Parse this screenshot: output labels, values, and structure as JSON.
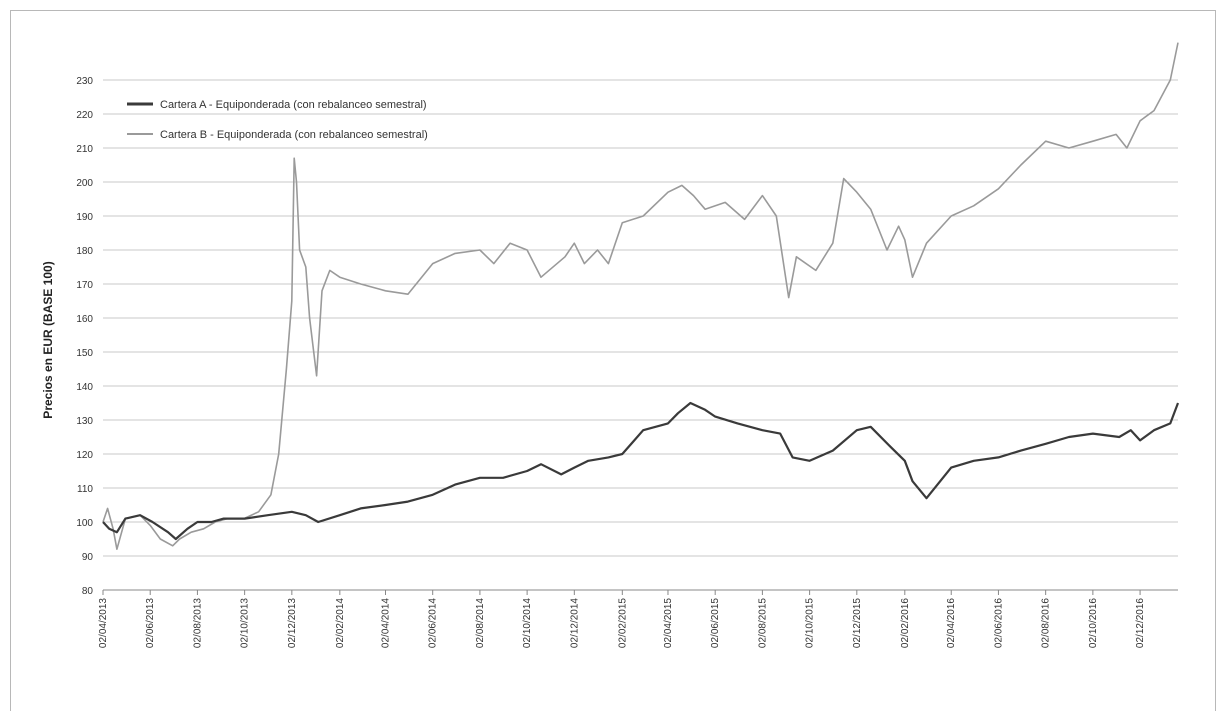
{
  "chart_data": {
    "type": "line",
    "title": "",
    "xlabel": "",
    "ylabel": "Precios en EUR (BASE 100)",
    "ylim": [
      80,
      230
    ],
    "yticks": [
      80,
      90,
      100,
      110,
      120,
      130,
      140,
      150,
      160,
      170,
      180,
      190,
      200,
      210,
      220,
      230
    ],
    "x_tick_labels": [
      "02/04/2013",
      "02/06/2013",
      "02/08/2013",
      "02/10/2013",
      "02/12/2013",
      "02/02/2014",
      "02/04/2014",
      "02/06/2014",
      "02/08/2014",
      "02/10/2014",
      "02/12/2014",
      "02/02/2015",
      "02/04/2015",
      "02/06/2015",
      "02/08/2015",
      "02/10/2015",
      "02/12/2015",
      "02/02/2016",
      "02/04/2016",
      "02/06/2016",
      "02/08/2016",
      "02/10/2016",
      "02/12/2016"
    ],
    "x_range": [
      "2013-04-02",
      "2017-01-20"
    ],
    "grid": "horizontal",
    "legend_position": "top-left",
    "series": [
      {
        "name": "Cartera A - Equiponderada (con rebalanceo semestral)",
        "color": "#3a3a3a",
        "x": [
          "2013-04-02",
          "2013-04-10",
          "2013-04-20",
          "2013-05-01",
          "2013-05-20",
          "2013-06-05",
          "2013-06-25",
          "2013-07-05",
          "2013-07-20",
          "2013-08-02",
          "2013-08-20",
          "2013-09-05",
          "2013-09-20",
          "2013-10-02",
          "2013-11-01",
          "2013-12-02",
          "2013-12-20",
          "2014-01-05",
          "2014-02-02",
          "2014-03-01",
          "2014-04-02",
          "2014-05-01",
          "2014-06-02",
          "2014-07-01",
          "2014-08-02",
          "2014-09-01",
          "2014-10-02",
          "2014-10-20",
          "2014-11-15",
          "2014-12-02",
          "2014-12-20",
          "2015-01-15",
          "2015-02-02",
          "2015-03-01",
          "2015-04-02",
          "2015-04-15",
          "2015-05-01",
          "2015-05-20",
          "2015-06-02",
          "2015-07-01",
          "2015-08-02",
          "2015-08-25",
          "2015-09-10",
          "2015-10-02",
          "2015-11-01",
          "2015-12-02",
          "2015-12-20",
          "2016-01-15",
          "2016-02-02",
          "2016-02-12",
          "2016-03-01",
          "2016-04-02",
          "2016-05-01",
          "2016-06-02",
          "2016-07-01",
          "2016-08-02",
          "2016-09-01",
          "2016-10-02",
          "2016-11-05",
          "2016-11-20",
          "2016-12-02",
          "2016-12-20",
          "2017-01-10",
          "2017-01-20"
        ],
        "values": [
          100,
          98,
          97,
          101,
          102,
          100,
          97,
          95,
          98,
          100,
          100,
          101,
          101,
          101,
          102,
          103,
          102,
          100,
          102,
          104,
          105,
          106,
          108,
          111,
          113,
          113,
          115,
          117,
          114,
          116,
          118,
          119,
          120,
          127,
          129,
          132,
          135,
          133,
          131,
          129,
          127,
          126,
          119,
          118,
          121,
          127,
          128,
          122,
          118,
          112,
          107,
          116,
          118,
          119,
          121,
          123,
          125,
          126,
          125,
          127,
          124,
          127,
          129,
          135
        ]
      },
      {
        "name": "Cartera B - Equiponderada (con rebalanceo semestral)",
        "color": "#9a9a9a",
        "x": [
          "2013-04-02",
          "2013-04-08",
          "2013-04-15",
          "2013-04-20",
          "2013-05-01",
          "2013-05-20",
          "2013-06-02",
          "2013-06-15",
          "2013-07-01",
          "2013-07-10",
          "2013-07-25",
          "2013-08-10",
          "2013-08-25",
          "2013-09-10",
          "2013-10-01",
          "2013-10-20",
          "2013-11-05",
          "2013-11-15",
          "2013-11-25",
          "2013-12-02",
          "2013-12-05",
          "2013-12-08",
          "2013-12-12",
          "2013-12-20",
          "2013-12-25",
          "2014-01-03",
          "2014-01-10",
          "2014-01-20",
          "2014-02-02",
          "2014-03-01",
          "2014-04-02",
          "2014-05-01",
          "2014-06-02",
          "2014-07-01",
          "2014-08-02",
          "2014-08-20",
          "2014-09-10",
          "2014-10-02",
          "2014-10-20",
          "2014-11-20",
          "2014-12-02",
          "2014-12-15",
          "2015-01-01",
          "2015-01-15",
          "2015-02-02",
          "2015-03-01",
          "2015-04-02",
          "2015-04-20",
          "2015-05-05",
          "2015-05-20",
          "2015-06-15",
          "2015-07-10",
          "2015-08-02",
          "2015-08-20",
          "2015-09-05",
          "2015-09-15",
          "2015-10-10",
          "2015-11-01",
          "2015-11-15",
          "2015-12-02",
          "2015-12-20",
          "2016-01-10",
          "2016-01-25",
          "2016-02-02",
          "2016-02-12",
          "2016-03-01",
          "2016-04-02",
          "2016-05-01",
          "2016-06-02",
          "2016-07-01",
          "2016-08-02",
          "2016-09-01",
          "2016-10-02",
          "2016-11-01",
          "2016-11-15",
          "2016-12-02",
          "2016-12-20",
          "2017-01-10",
          "2017-01-20"
        ],
        "values": [
          100,
          104,
          98,
          92,
          101,
          102,
          99,
          95,
          93,
          95,
          97,
          98,
          100,
          101,
          101,
          103,
          108,
          120,
          145,
          165,
          207,
          200,
          180,
          175,
          160,
          143,
          168,
          174,
          172,
          170,
          168,
          167,
          176,
          179,
          180,
          176,
          182,
          180,
          172,
          178,
          182,
          176,
          180,
          176,
          188,
          190,
          197,
          199,
          196,
          192,
          194,
          189,
          196,
          190,
          166,
          178,
          174,
          182,
          201,
          197,
          192,
          180,
          187,
          183,
          172,
          182,
          190,
          193,
          198,
          205,
          212,
          210,
          212,
          214,
          210,
          218,
          221,
          230,
          241
        ]
      }
    ]
  }
}
